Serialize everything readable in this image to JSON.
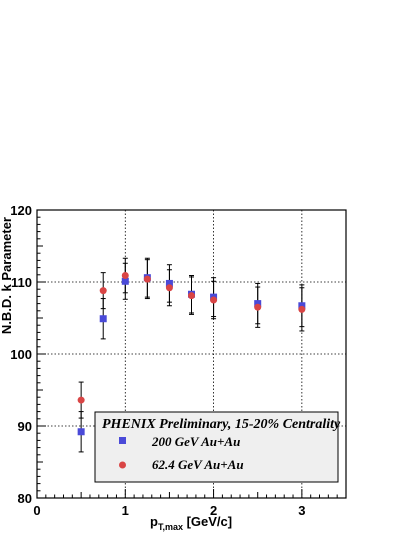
{
  "chart_data": {
    "type": "scatter",
    "xlabel_main": "p",
    "xlabel_sub": "T,max",
    "xlabel_unit": " [GeV/c]",
    "ylabel": "N.B.D. k Parameter",
    "xlim": [
      0,
      3.5
    ],
    "ylim": [
      80,
      120
    ],
    "x_ticks": [
      0,
      1,
      2,
      3
    ],
    "y_ticks": [
      80,
      90,
      100,
      110,
      120
    ],
    "grid": true,
    "legend_placement": "bottom-right",
    "legend_title": "PHENIX Preliminary, 15-20% Centrality",
    "series": [
      {
        "name": "200 GeV Au+Au",
        "marker": "square",
        "color": "#4a4ad8",
        "points": [
          {
            "x": 0.5,
            "y": 89.2,
            "err": 2.8
          },
          {
            "x": 0.75,
            "y": 104.9,
            "err": 2.8
          },
          {
            "x": 1.0,
            "y": 110.1,
            "err": 2.5
          },
          {
            "x": 1.25,
            "y": 110.6,
            "err": 2.7
          },
          {
            "x": 1.5,
            "y": 109.8,
            "err": 2.6
          },
          {
            "x": 1.75,
            "y": 108.3,
            "err": 2.6
          },
          {
            "x": 2.0,
            "y": 107.9,
            "err": 2.7
          },
          {
            "x": 2.5,
            "y": 107.0,
            "err": 2.8
          },
          {
            "x": 3.0,
            "y": 106.7,
            "err": 2.9
          }
        ]
      },
      {
        "name": "62.4 GeV Au+Au",
        "marker": "circle",
        "color": "#d94545",
        "points": [
          {
            "x": 0.5,
            "y": 93.6,
            "err": 2.5
          },
          {
            "x": 0.75,
            "y": 108.8,
            "err": 2.5
          },
          {
            "x": 1.0,
            "y": 110.9,
            "err": 2.4
          },
          {
            "x": 1.25,
            "y": 110.4,
            "err": 2.7
          },
          {
            "x": 1.5,
            "y": 109.2,
            "err": 2.5
          },
          {
            "x": 1.75,
            "y": 108.1,
            "err": 2.6
          },
          {
            "x": 2.0,
            "y": 107.5,
            "err": 2.6
          },
          {
            "x": 2.5,
            "y": 106.5,
            "err": 2.8
          },
          {
            "x": 3.0,
            "y": 106.2,
            "err": 3.0
          }
        ]
      }
    ]
  }
}
